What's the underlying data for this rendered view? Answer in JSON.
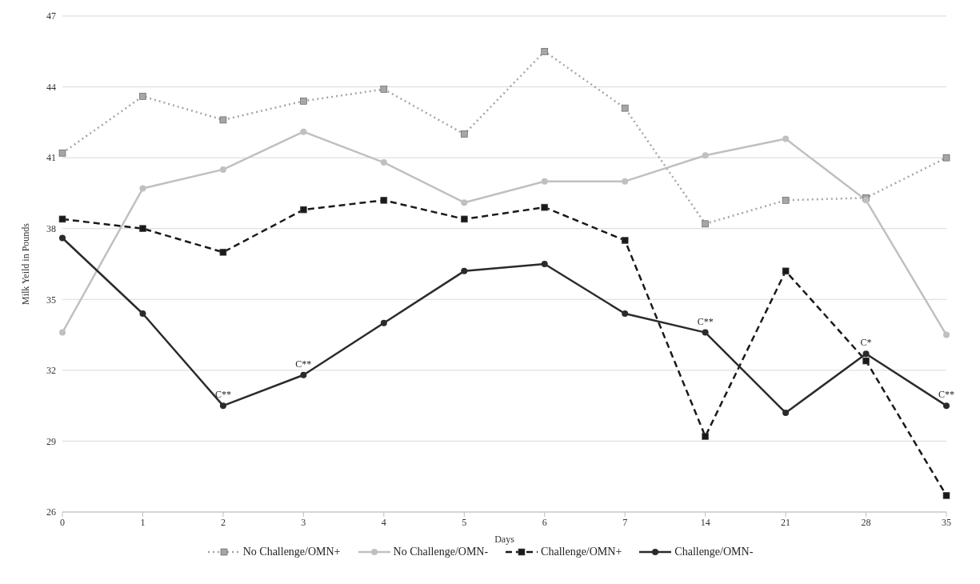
{
  "chart_data": {
    "type": "line",
    "xlabel": "Days",
    "ylabel": "Milk Yeild in Pounds",
    "categories": [
      "0",
      "1",
      "2",
      "3",
      "4",
      "5",
      "6",
      "7",
      "14",
      "21",
      "28",
      "35"
    ],
    "ylim": [
      26,
      47
    ],
    "yticks": [
      26,
      29,
      32,
      35,
      38,
      41,
      44,
      47
    ],
    "grid": "y",
    "legend": "bottom",
    "series": [
      {
        "name": "No Challenge/OMN+",
        "color": "#a6a6a6",
        "marker": "square",
        "line_style": "dotted",
        "values": [
          41.2,
          43.6,
          42.6,
          43.4,
          43.9,
          42.0,
          45.5,
          43.1,
          38.2,
          39.2,
          39.3,
          41.0
        ]
      },
      {
        "name": "No Challenge/OMN-",
        "color": "#c0c0c0",
        "marker": "circle",
        "line_style": "solid",
        "values": [
          33.6,
          39.7,
          40.5,
          42.1,
          40.8,
          39.1,
          40.0,
          40.0,
          41.1,
          41.8,
          39.2,
          33.5
        ]
      },
      {
        "name": "Challenge/OMN+",
        "color": "#1a1a1a",
        "marker": "square",
        "line_style": "dashed",
        "values": [
          38.4,
          38.0,
          37.0,
          38.8,
          39.2,
          38.4,
          38.9,
          37.5,
          29.2,
          36.2,
          32.4,
          26.7
        ]
      },
      {
        "name": "Challenge/OMN-",
        "color": "#2b2b2b",
        "marker": "circle",
        "line_style": "solid",
        "values": [
          37.6,
          34.4,
          30.5,
          31.8,
          34.0,
          36.2,
          36.5,
          34.4,
          33.6,
          30.2,
          32.7,
          30.5
        ]
      }
    ],
    "annotations": [
      {
        "text": "C**",
        "x": "2",
        "y": 30.5
      },
      {
        "text": "C**",
        "x": "3",
        "y": 31.8
      },
      {
        "text": "C**",
        "x": "14",
        "y": 33.6
      },
      {
        "text": "C*",
        "x": "28",
        "y": 32.7
      },
      {
        "text": "C**",
        "x": "35",
        "y": 30.5
      }
    ]
  }
}
